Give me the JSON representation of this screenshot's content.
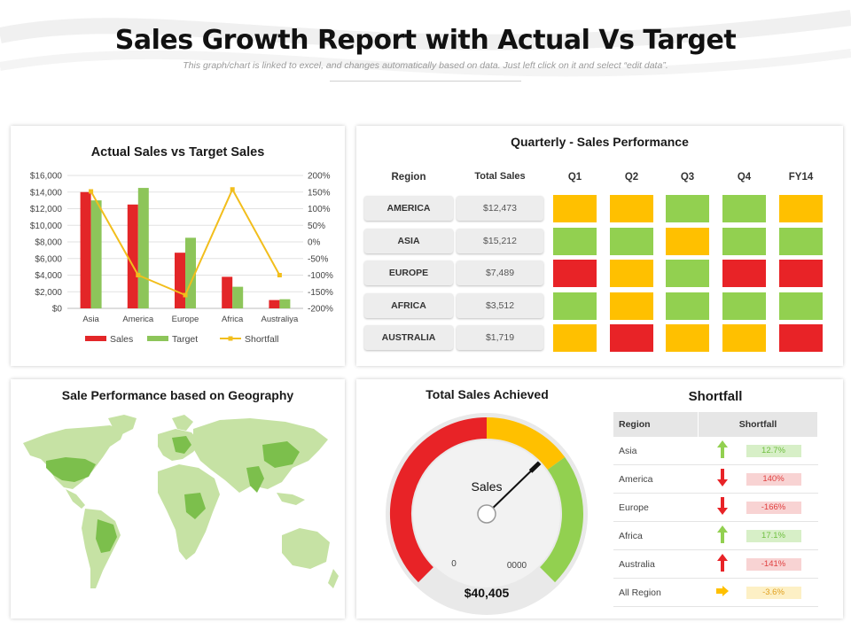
{
  "header": {
    "title": "Sales Growth Report with Actual Vs Target",
    "subtitle": "This graph/chart is linked to excel, and changes automatically based on data. Just left click on it and select “edit data”."
  },
  "colors": {
    "sales": "#e32628",
    "target": "#8dc55a",
    "shortfall": "#f2be1c",
    "green": "#92d050",
    "yellow": "#ffc000",
    "red": "#e82327"
  },
  "chart_data": [
    {
      "type": "bar",
      "title": "Actual Sales vs Target Sales",
      "categories": [
        "Asia",
        "America",
        "Europe",
        "Africa",
        "Australiya"
      ],
      "series": [
        {
          "name": "Sales",
          "axis": "left",
          "values": [
            14000,
            12500,
            6700,
            3800,
            1000
          ]
        },
        {
          "name": "Target",
          "axis": "left",
          "values": [
            13000,
            14500,
            8500,
            2600,
            1100
          ]
        },
        {
          "name": "Shortfall",
          "type": "line",
          "axis": "right",
          "values": [
            152,
            -100,
            -160,
            158,
            -100
          ]
        }
      ],
      "ylim": [
        0,
        16000
      ],
      "yticks": [
        "$0",
        "$2,000",
        "$4,000",
        "$6,000",
        "$8,000",
        "$10,000",
        "$12,000",
        "$14,000",
        "$16,000"
      ],
      "y2lim": [
        -200,
        200
      ],
      "y2ticks": [
        "-200%",
        "-150%",
        "-100%",
        "-50%",
        "0%",
        "50%",
        "100%",
        "150%",
        "200%"
      ],
      "grid": true,
      "legend": "bottom"
    },
    {
      "type": "table",
      "title": "Quarterly - Sales Performance",
      "columns": [
        "Region",
        "Total Sales",
        "Q1",
        "Q2",
        "Q3",
        "Q4",
        "FY14"
      ],
      "rows": [
        {
          "region": "AMERICA",
          "total": "$12,473",
          "status": [
            "yellow",
            "yellow",
            "green",
            "green",
            "yellow"
          ]
        },
        {
          "region": "ASIA",
          "total": "$15,212",
          "status": [
            "green",
            "green",
            "yellow",
            "green",
            "green"
          ]
        },
        {
          "region": "EUROPE",
          "total": "$7,489",
          "status": [
            "red",
            "yellow",
            "green",
            "red",
            "red"
          ]
        },
        {
          "region": "AFRICA",
          "total": "$3,512",
          "status": [
            "green",
            "yellow",
            "green",
            "green",
            "green"
          ]
        },
        {
          "region": "AUSTRALIA",
          "total": "$1,719",
          "status": [
            "yellow",
            "red",
            "yellow",
            "yellow",
            "red"
          ]
        }
      ]
    },
    {
      "type": "gauge",
      "title": "Total Sales Achieved",
      "center_label": "Sales",
      "min_label": "0",
      "max_label": "0000",
      "value_label": "$40,405",
      "bands": [
        {
          "color": "red",
          "fraction": 0.5
        },
        {
          "color": "yellow",
          "fraction": 0.2
        },
        {
          "color": "green",
          "fraction": 0.3
        }
      ],
      "needle_fraction": 0.67
    },
    {
      "type": "table",
      "title": "Shortfall",
      "columns": [
        "Region",
        "Shortfall"
      ],
      "rows": [
        {
          "region": "Asia",
          "direction": "up",
          "arrow_color": "green",
          "value": "12.7%",
          "tone": "pos"
        },
        {
          "region": "America",
          "direction": "down",
          "arrow_color": "red",
          "value": "140%",
          "tone": "neg"
        },
        {
          "region": "Europe",
          "direction": "down",
          "arrow_color": "red",
          "value": "-166%",
          "tone": "neg"
        },
        {
          "region": "Africa",
          "direction": "up",
          "arrow_color": "green",
          "value": "17.1%",
          "tone": "pos"
        },
        {
          "region": "Australia",
          "direction": "up",
          "arrow_color": "red",
          "value": "-141%",
          "tone": "neg"
        },
        {
          "region": "All Region",
          "direction": "right",
          "arrow_color": "yellow",
          "value": "-3.6%",
          "tone": "neu"
        }
      ]
    }
  ],
  "geography": {
    "title": "Sale Performance based on Geography",
    "map_icon": "world-map-icon"
  }
}
